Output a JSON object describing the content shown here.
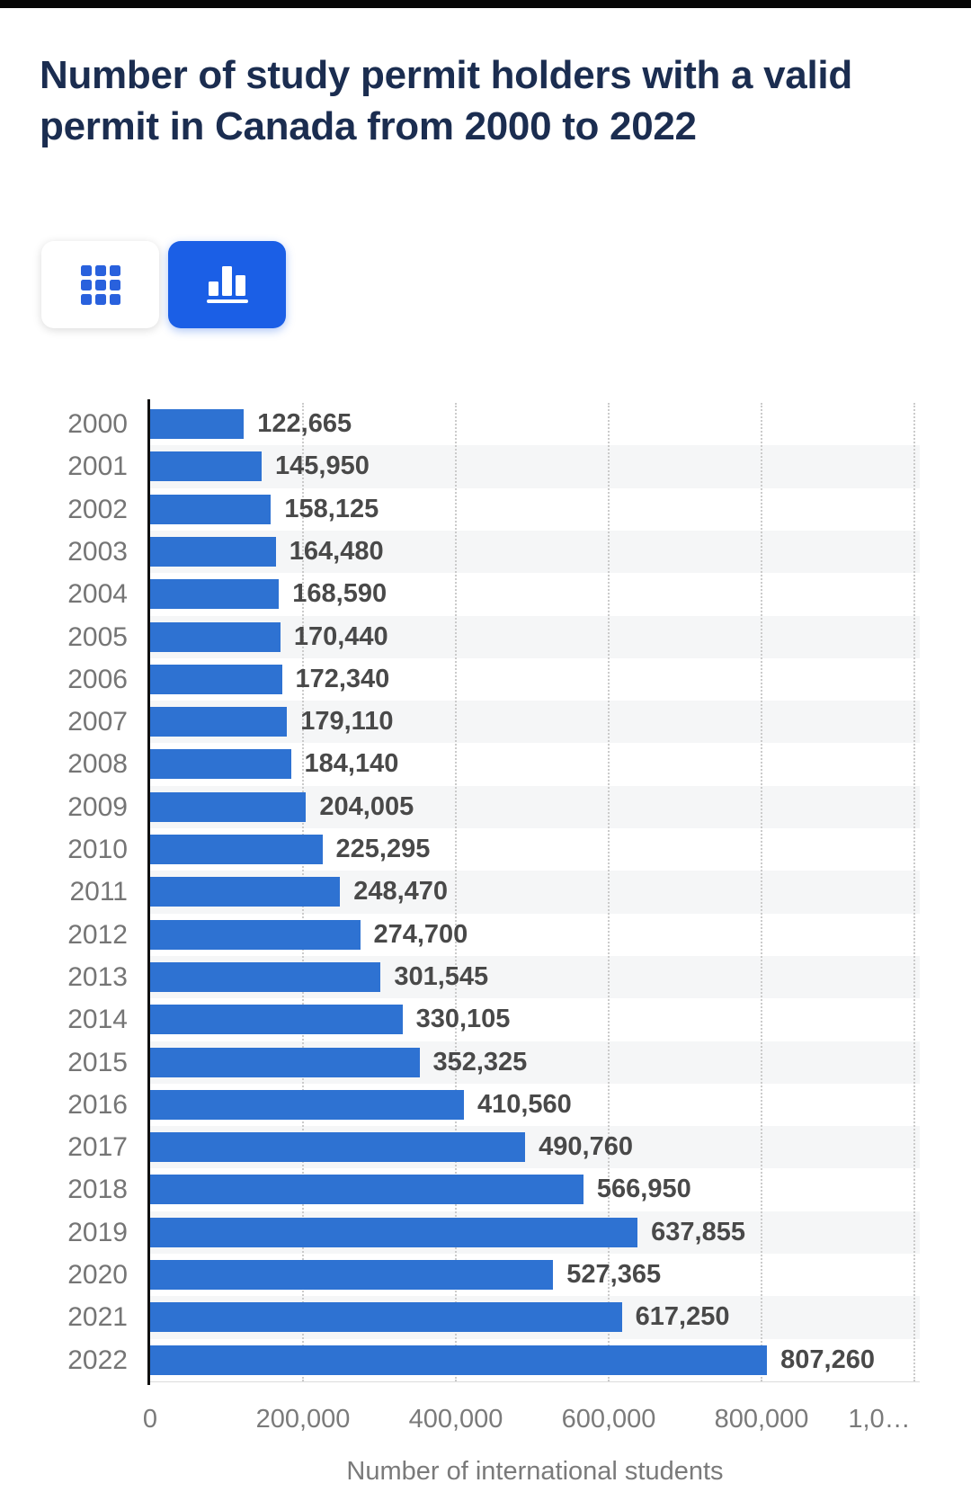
{
  "header": {
    "title": "Number of study permit holders with a valid permit in Canada from 2000 to 2022"
  },
  "toolbar": {
    "buttons": [
      {
        "icon": "grid-icon",
        "meaning": "table-view",
        "selected": false
      },
      {
        "icon": "bar-chart-icon",
        "meaning": "chart-view",
        "selected": true
      }
    ],
    "accent_color": "#1b5fe6"
  },
  "chart_data": {
    "type": "bar",
    "orientation": "horizontal",
    "title": "Number of study permit holders with a valid permit in Canada from 2000 to 2022",
    "xlabel": "Number of international students",
    "ylabel": "",
    "xlim": [
      0,
      1000000
    ],
    "grid": "vertical-dotted",
    "bar_color": "#2e72d2",
    "stripe_color": "#f5f6f7",
    "categories": [
      "2000",
      "2001",
      "2002",
      "2003",
      "2004",
      "2005",
      "2006",
      "2007",
      "2008",
      "2009",
      "2010",
      "2011",
      "2012",
      "2013",
      "2014",
      "2015",
      "2016",
      "2017",
      "2018",
      "2019",
      "2020",
      "2021",
      "2022"
    ],
    "values": [
      122665,
      145950,
      158125,
      164480,
      168590,
      170440,
      172340,
      179110,
      184140,
      204005,
      225295,
      248470,
      274700,
      301545,
      330105,
      352325,
      410560,
      490760,
      566950,
      637855,
      527365,
      617250,
      807260
    ],
    "value_labels": [
      "122,665",
      "145,950",
      "158,125",
      "164,480",
      "168,590",
      "170,440",
      "172,340",
      "179,110",
      "184,140",
      "204,005",
      "225,295",
      "248,470",
      "274,700",
      "301,545",
      "330,105",
      "352,325",
      "410,560",
      "490,760",
      "566,950",
      "637,855",
      "527,365",
      "617,250",
      "807,260"
    ],
    "x_ticks": [
      {
        "value": 0,
        "label": "0"
      },
      {
        "value": 200000,
        "label": "200,000"
      },
      {
        "value": 400000,
        "label": "400,000"
      },
      {
        "value": 600000,
        "label": "600,000"
      },
      {
        "value": 800000,
        "label": "800,000"
      },
      {
        "value": 1000000,
        "label": "1,0…"
      }
    ]
  }
}
